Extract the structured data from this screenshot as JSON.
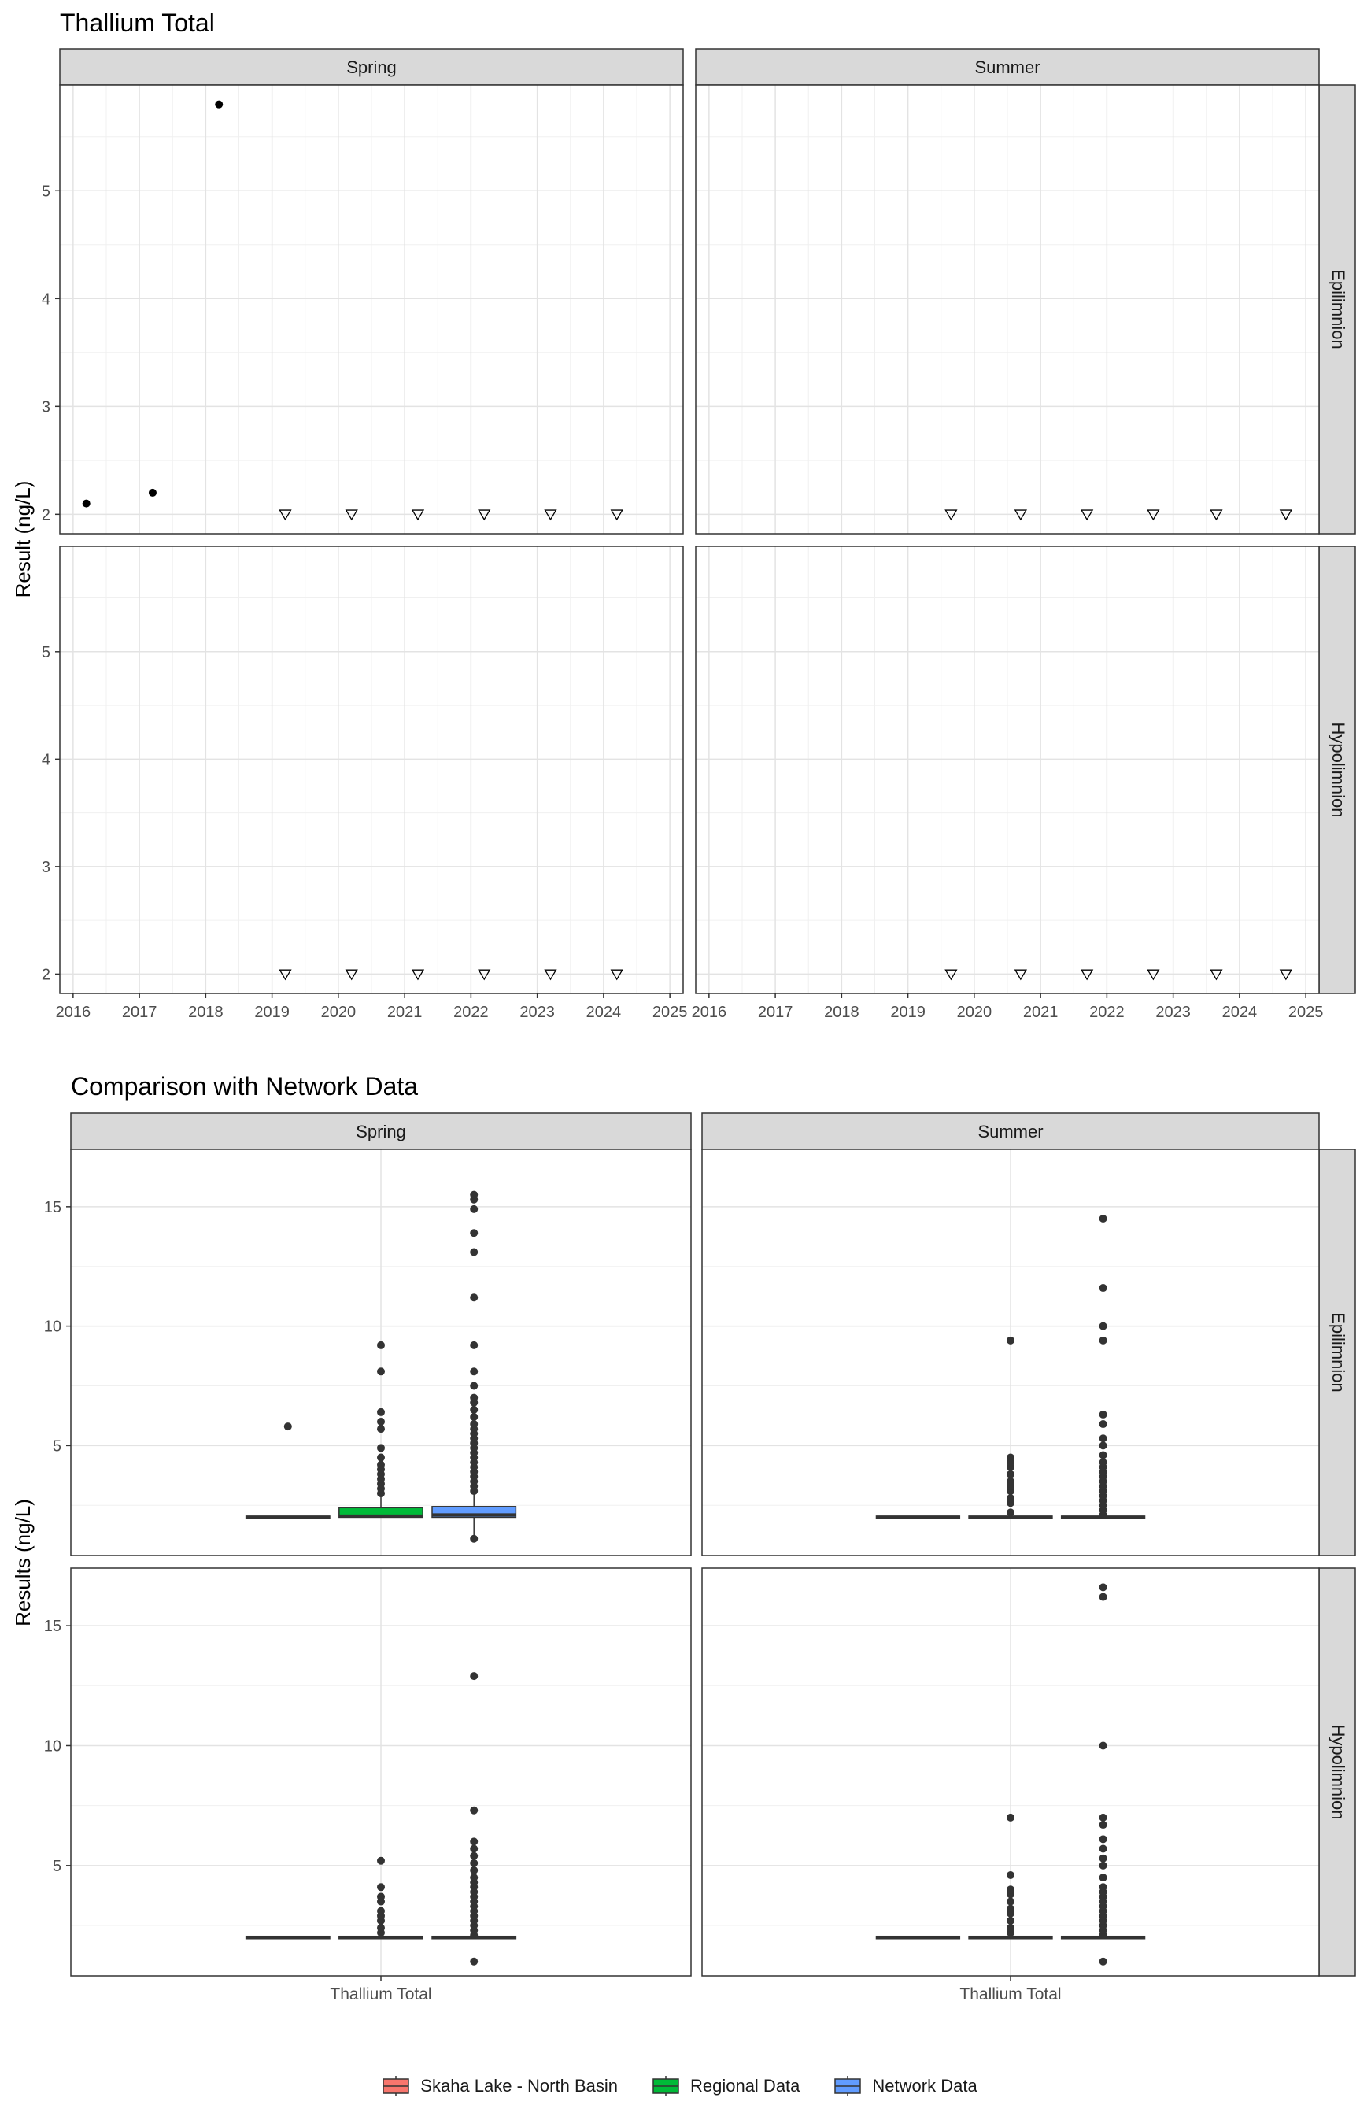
{
  "chart_data": [
    {
      "type": "scatter",
      "title": "Thallium Total",
      "ylabel": "Result (ng/L)",
      "xlabel": "",
      "xlim": [
        2015.8,
        2025.2
      ],
      "ylim": [
        1.82,
        5.98
      ],
      "x_ticks": [
        "2016",
        "2017",
        "2018",
        "2019",
        "2020",
        "2021",
        "2022",
        "2023",
        "2024",
        "2025"
      ],
      "y_ticks": [
        "2",
        "3",
        "4",
        "5"
      ],
      "grid": true,
      "facet_cols": [
        "Spring",
        "Summer"
      ],
      "facet_rows": [
        "Epilimnion",
        "Hypolimnion"
      ],
      "panels": [
        {
          "col": 0,
          "row": 0,
          "detected": [
            {
              "x": 2016.2,
              "y": 2.1
            },
            {
              "x": 2017.2,
              "y": 2.2
            },
            {
              "x": 2018.2,
              "y": 5.8
            }
          ],
          "below_detection": [
            {
              "x": 2019.2,
              "y": 2
            },
            {
              "x": 2020.2,
              "y": 2
            },
            {
              "x": 2021.2,
              "y": 2
            },
            {
              "x": 2022.2,
              "y": 2
            },
            {
              "x": 2023.2,
              "y": 2
            },
            {
              "x": 2024.2,
              "y": 2
            }
          ]
        },
        {
          "col": 1,
          "row": 0,
          "detected": [],
          "below_detection": [
            {
              "x": 2019.65,
              "y": 2
            },
            {
              "x": 2020.7,
              "y": 2
            },
            {
              "x": 2021.7,
              "y": 2
            },
            {
              "x": 2022.7,
              "y": 2
            },
            {
              "x": 2023.65,
              "y": 2
            },
            {
              "x": 2024.7,
              "y": 2
            }
          ]
        },
        {
          "col": 0,
          "row": 1,
          "detected": [],
          "below_detection": [
            {
              "x": 2019.2,
              "y": 2
            },
            {
              "x": 2020.2,
              "y": 2
            },
            {
              "x": 2021.2,
              "y": 2
            },
            {
              "x": 2022.2,
              "y": 2
            },
            {
              "x": 2023.2,
              "y": 2
            },
            {
              "x": 2024.2,
              "y": 2
            }
          ]
        },
        {
          "col": 1,
          "row": 1,
          "detected": [],
          "below_detection": [
            {
              "x": 2019.65,
              "y": 2
            },
            {
              "x": 2020.7,
              "y": 2
            },
            {
              "x": 2021.7,
              "y": 2
            },
            {
              "x": 2022.7,
              "y": 2
            },
            {
              "x": 2023.65,
              "y": 2
            },
            {
              "x": 2024.7,
              "y": 2
            }
          ]
        }
      ]
    },
    {
      "type": "box",
      "title": "Comparison with Network Data",
      "ylabel": "Results (ng/L)",
      "xlabel": "",
      "category": "Thallium Total",
      "ylim": [
        0.4,
        17.4
      ],
      "y_ticks": [
        "5",
        "10",
        "15"
      ],
      "grid": true,
      "facet_cols": [
        "Spring",
        "Summer"
      ],
      "facet_rows": [
        "Epilimnion",
        "Hypolimnion"
      ],
      "series": [
        {
          "name": "Skaha Lake - North Basin",
          "color": "#F8766D"
        },
        {
          "name": "Regional Data",
          "color": "#00BA38"
        },
        {
          "name": "Network Data",
          "color": "#619CFF"
        }
      ],
      "legend_position": "bottom",
      "panels": [
        {
          "col": 0,
          "row": 0,
          "boxes": [
            {
              "q1": 1.95,
              "median": 2.0,
              "q3": 2.05,
              "whisker_low": 1.95,
              "whisker_high": 2.05,
              "outliers": [
                5.8
              ]
            },
            {
              "q1": 2.0,
              "median": 2.05,
              "q3": 2.4,
              "whisker_low": 2.0,
              "whisker_high": 2.9,
              "outliers": [
                3.0,
                3.2,
                3.4,
                3.6,
                3.8,
                4.0,
                4.2,
                4.5,
                4.9,
                5.7,
                6.0,
                6.4,
                8.1,
                9.2
              ]
            },
            {
              "q1": 2.0,
              "median": 2.1,
              "q3": 2.45,
              "whisker_low": 1.0,
              "whisker_high": 3.0,
              "outliers": [
                1.1,
                3.1,
                3.3,
                3.5,
                3.7,
                3.9,
                4.1,
                4.3,
                4.5,
                4.7,
                4.9,
                5.1,
                5.3,
                5.5,
                5.7,
                5.9,
                6.2,
                6.5,
                6.8,
                7.0,
                7.5,
                8.1,
                9.2,
                11.2,
                13.1,
                13.9,
                14.9,
                15.3,
                15.5
              ]
            }
          ]
        },
        {
          "col": 1,
          "row": 0,
          "boxes": [
            {
              "q1": 1.95,
              "median": 2.0,
              "q3": 2.05,
              "whisker_low": 1.95,
              "whisker_high": 2.05,
              "outliers": []
            },
            {
              "q1": 1.95,
              "median": 2.0,
              "q3": 2.05,
              "whisker_low": 1.95,
              "whisker_high": 2.05,
              "outliers": [
                2.2,
                2.6,
                2.8,
                3.1,
                3.3,
                3.5,
                3.8,
                4.1,
                4.3,
                4.5,
                9.4
              ]
            },
            {
              "q1": 1.95,
              "median": 2.0,
              "q3": 2.05,
              "whisker_low": 1.95,
              "whisker_high": 2.05,
              "outliers": [
                2.1,
                2.3,
                2.5,
                2.7,
                2.9,
                3.1,
                3.3,
                3.5,
                3.7,
                3.9,
                4.1,
                4.3,
                4.6,
                5.0,
                5.3,
                5.9,
                6.3,
                9.4,
                10.0,
                11.6,
                14.5
              ]
            }
          ]
        },
        {
          "col": 0,
          "row": 1,
          "boxes": [
            {
              "q1": 1.95,
              "median": 2.0,
              "q3": 2.05,
              "whisker_low": 1.95,
              "whisker_high": 2.05,
              "outliers": []
            },
            {
              "q1": 1.95,
              "median": 2.0,
              "q3": 2.05,
              "whisker_low": 1.95,
              "whisker_high": 2.05,
              "outliers": [
                2.2,
                2.4,
                2.7,
                2.9,
                3.1,
                3.5,
                3.7,
                4.1,
                5.2
              ]
            },
            {
              "q1": 1.95,
              "median": 2.0,
              "q3": 2.05,
              "whisker_low": 1.95,
              "whisker_high": 2.05,
              "outliers": [
                1.0,
                2.1,
                2.3,
                2.5,
                2.7,
                2.9,
                3.1,
                3.3,
                3.5,
                3.7,
                3.9,
                4.1,
                4.3,
                4.5,
                4.8,
                5.1,
                5.4,
                5.7,
                6.0,
                7.3,
                12.9
              ]
            }
          ]
        },
        {
          "col": 1,
          "row": 1,
          "boxes": [
            {
              "q1": 1.95,
              "median": 2.0,
              "q3": 2.05,
              "whisker_low": 1.95,
              "whisker_high": 2.05,
              "outliers": []
            },
            {
              "q1": 1.95,
              "median": 2.0,
              "q3": 2.05,
              "whisker_low": 1.95,
              "whisker_high": 2.05,
              "outliers": [
                2.2,
                2.4,
                2.7,
                3.0,
                3.2,
                3.5,
                3.8,
                4.0,
                4.6,
                7.0
              ]
            },
            {
              "q1": 1.95,
              "median": 2.0,
              "q3": 2.05,
              "whisker_low": 1.95,
              "whisker_high": 2.05,
              "outliers": [
                1.0,
                2.1,
                2.3,
                2.5,
                2.7,
                2.9,
                3.1,
                3.3,
                3.5,
                3.7,
                3.9,
                4.1,
                4.5,
                5.0,
                5.3,
                5.7,
                6.1,
                6.7,
                7.0,
                10.0,
                16.2,
                16.6
              ]
            }
          ]
        }
      ]
    }
  ]
}
